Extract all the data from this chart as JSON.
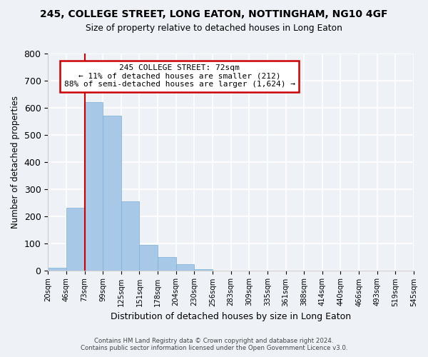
{
  "title": "245, COLLEGE STREET, LONG EATON, NOTTINGHAM, NG10 4GF",
  "subtitle": "Size of property relative to detached houses in Long Eaton",
  "xlabel": "Distribution of detached houses by size in Long Eaton",
  "ylabel": "Number of detached properties",
  "bin_labels": [
    "20sqm",
    "46sqm",
    "73sqm",
    "99sqm",
    "125sqm",
    "151sqm",
    "178sqm",
    "204sqm",
    "230sqm",
    "256sqm",
    "283sqm",
    "309sqm",
    "335sqm",
    "361sqm",
    "388sqm",
    "414sqm",
    "440sqm",
    "466sqm",
    "493sqm",
    "519sqm",
    "545sqm"
  ],
  "bar_heights": [
    10,
    230,
    620,
    570,
    255,
    95,
    48,
    22,
    5,
    0,
    0,
    0,
    0,
    0,
    0,
    0,
    0,
    0,
    0,
    0
  ],
  "bar_color": "#a8c8e8",
  "bar_edge_color": "#7ab0d4",
  "property_line_index": 2,
  "annotation_line1": "245 COLLEGE STREET: 72sqm",
  "annotation_line2": "← 11% of detached houses are smaller (212)",
  "annotation_line3": "88% of semi-detached houses are larger (1,624) →",
  "annotation_box_color": "#ffffff",
  "annotation_box_edge_color": "#cc0000",
  "property_line_color": "#cc0000",
  "ylim": [
    0,
    800
  ],
  "yticks": [
    0,
    100,
    200,
    300,
    400,
    500,
    600,
    700,
    800
  ],
  "footer_line1": "Contains HM Land Registry data © Crown copyright and database right 2024.",
  "footer_line2": "Contains public sector information licensed under the Open Government Licence v3.0.",
  "background_color": "#eef2f7",
  "plot_background": "#eef2f7",
  "grid_color": "#ffffff"
}
